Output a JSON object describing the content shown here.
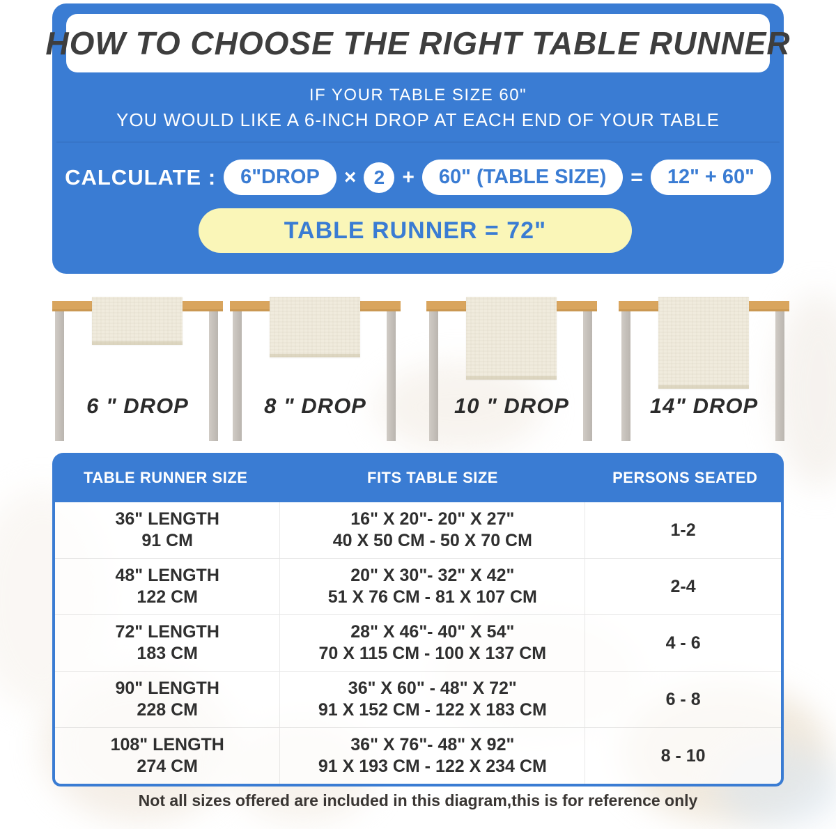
{
  "colors": {
    "blue": "#3a7cd3",
    "pale_yellow": "#faf6b8",
    "tabletop_tan": "#d9a55e",
    "leg_gray": "#c5c0ba",
    "runner_cream": "#f0ebdd",
    "title_text": "#3e3e3e",
    "body_text": "#2f2f2f"
  },
  "header": {
    "title": "HOW TO CHOOSE THE RIGHT TABLE RUNNER",
    "subtitle1": "IF YOUR TABLE SIZE 60\"",
    "subtitle2": "YOU WOULD LIKE A 6-INCH DROP AT EACH END OF YOUR TABLE"
  },
  "calc": {
    "label": "CALCULATE :",
    "drop_pill": "6\"DROP",
    "times": "×",
    "multiplier": "2",
    "plus": "+",
    "table_pill": "60\"  (TABLE SIZE)",
    "equals": "=",
    "sum_pill": "12\" + 60\"",
    "result": "TABLE RUNNER = 72\""
  },
  "drops": [
    {
      "label": "6 \" DROP"
    },
    {
      "label": "8 \" DROP"
    },
    {
      "label": "10 \" DROP"
    },
    {
      "label": "14\" DROP"
    }
  ],
  "size_table": {
    "headers": [
      "TABLE RUNNER SIZE",
      "FITS TABLE SIZE",
      "PERSONS SEATED"
    ],
    "rows": [
      {
        "size_in": "36\" LENGTH",
        "size_cm": "91 CM",
        "fits_in": "16\" X 20\"- 20\" X 27\"",
        "fits_cm": "40 X 50 CM - 50 X 70 CM",
        "persons": "1-2"
      },
      {
        "size_in": "48\" LENGTH",
        "size_cm": "122 CM",
        "fits_in": "20\" X 30\"- 32\" X 42\"",
        "fits_cm": "51 X 76 CM - 81 X 107 CM",
        "persons": "2-4"
      },
      {
        "size_in": "72\" LENGTH",
        "size_cm": "183 CM",
        "fits_in": "28\" X 46\"- 40\" X 54\"",
        "fits_cm": "70 X 115 CM - 100 X 137 CM",
        "persons": "4 - 6"
      },
      {
        "size_in": "90\" LENGTH",
        "size_cm": "228 CM",
        "fits_in": "36\" X 60\" - 48\" X 72\"",
        "fits_cm": "91 X 152 CM - 122 X 183 CM",
        "persons": "6 - 8"
      },
      {
        "size_in": "108\" LENGTH",
        "size_cm": "274 CM",
        "fits_in": "36\" X 76\"- 48\" X 92\"",
        "fits_cm": "91 X 193 CM - 122 X 234 CM",
        "persons": "8 - 10"
      }
    ]
  },
  "footer": {
    "note": "Not all sizes offered are included in this diagram,this is for reference only"
  }
}
